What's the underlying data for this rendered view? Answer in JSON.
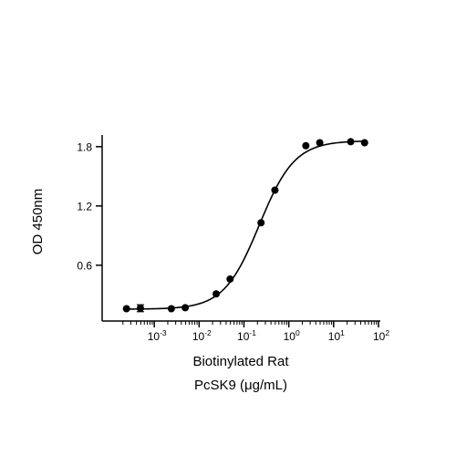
{
  "chart_data": {
    "type": "scatter",
    "xlabel": [
      "Biotinylated Rat",
      "PcSK9 (μg/mL)"
    ],
    "ylabel": "OD 450nm",
    "xscale": "log",
    "xlim": [
      0.0001,
      100
    ],
    "ylim": [
      0.1,
      1.9
    ],
    "x_ticks": [
      {
        "value": 0.001,
        "base": "10",
        "exp": "-3"
      },
      {
        "value": 0.01,
        "base": "10",
        "exp": "-2"
      },
      {
        "value": 0.1,
        "base": "10",
        "exp": "-1"
      },
      {
        "value": 1,
        "base": "10",
        "exp": "0"
      },
      {
        "value": 10,
        "base": "10",
        "exp": "1"
      },
      {
        "value": 100,
        "base": "10",
        "exp": "2"
      }
    ],
    "y_ticks": [
      {
        "value": 0.6,
        "label": "0.6"
      },
      {
        "value": 1.2,
        "label": "1.2"
      },
      {
        "value": 1.8,
        "label": "1.8"
      }
    ],
    "grid": false,
    "legend": "none",
    "series": [
      {
        "marker": "filled-circle",
        "color": "#000000",
        "points": [
          {
            "x": 0.00024,
            "y": 0.16
          },
          {
            "x": 0.00049,
            "y": 0.165,
            "err": 0.035
          },
          {
            "x": 0.0024,
            "y": 0.16
          },
          {
            "x": 0.0049,
            "y": 0.17
          },
          {
            "x": 0.024,
            "y": 0.31
          },
          {
            "x": 0.049,
            "y": 0.46
          },
          {
            "x": 0.24,
            "y": 1.03
          },
          {
            "x": 0.49,
            "y": 1.36
          },
          {
            "x": 2.4,
            "y": 1.81
          },
          {
            "x": 4.9,
            "y": 1.84
          },
          {
            "x": 24,
            "y": 1.85
          },
          {
            "x": 49,
            "y": 1.84
          }
        ]
      }
    ],
    "fit": {
      "type": "4PL",
      "bottom": 0.155,
      "top": 1.86,
      "ec50": 0.22,
      "hill": 1.1
    }
  }
}
